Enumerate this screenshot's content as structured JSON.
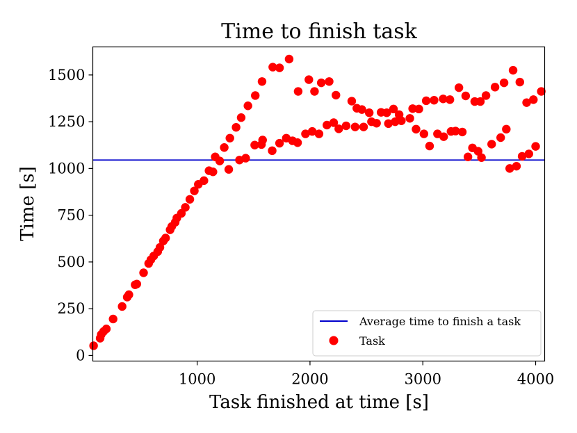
{
  "chart_data": {
    "type": "scatter",
    "title": "Time to finish task",
    "xlabel": "Task finished at time [s]",
    "ylabel": "Time [s]",
    "xlim": [
      75,
      4080
    ],
    "ylim": [
      -30,
      1650
    ],
    "xticks": [
      {
        "value": 1000,
        "label": "1000"
      },
      {
        "value": 2000,
        "label": "2000"
      },
      {
        "value": 3000,
        "label": "3000"
      },
      {
        "value": 4000,
        "label": "4000"
      }
    ],
    "yticks": [
      {
        "value": 0,
        "label": "0"
      },
      {
        "value": 250,
        "label": "250"
      },
      {
        "value": 500,
        "label": "500"
      },
      {
        "value": 750,
        "label": "750"
      },
      {
        "value": 1000,
        "label": "1000"
      },
      {
        "value": 1250,
        "label": "1250"
      },
      {
        "value": 1500,
        "label": "1500"
      }
    ],
    "grid": false,
    "legend_position": "lower right",
    "series": [
      {
        "name": "Average time to finish a task",
        "kind": "hline",
        "y": 1045,
        "color": "#0000cc"
      },
      {
        "name": "Task",
        "kind": "scatter",
        "color": "#ff0000",
        "points": [
          [
            82,
            52
          ],
          [
            140,
            92
          ],
          [
            150,
            112
          ],
          [
            170,
            128
          ],
          [
            195,
            142
          ],
          [
            255,
            195
          ],
          [
            335,
            262
          ],
          [
            380,
            312
          ],
          [
            395,
            325
          ],
          [
            450,
            378
          ],
          [
            465,
            382
          ],
          [
            525,
            442
          ],
          [
            570,
            492
          ],
          [
            590,
            512
          ],
          [
            615,
            532
          ],
          [
            650,
            555
          ],
          [
            670,
            578
          ],
          [
            700,
            612
          ],
          [
            720,
            628
          ],
          [
            760,
            672
          ],
          [
            775,
            690
          ],
          [
            805,
            712
          ],
          [
            820,
            735
          ],
          [
            860,
            760
          ],
          [
            895,
            792
          ],
          [
            935,
            835
          ],
          [
            975,
            880
          ],
          [
            1010,
            915
          ],
          [
            1060,
            935
          ],
          [
            1105,
            988
          ],
          [
            1140,
            982
          ],
          [
            1160,
            1062
          ],
          [
            1200,
            1040
          ],
          [
            1240,
            1112
          ],
          [
            1280,
            995
          ],
          [
            1290,
            1162
          ],
          [
            1345,
            1220
          ],
          [
            1375,
            1045
          ],
          [
            1390,
            1272
          ],
          [
            1430,
            1055
          ],
          [
            1450,
            1335
          ],
          [
            1510,
            1125
          ],
          [
            1515,
            1390
          ],
          [
            1580,
            1152
          ],
          [
            1570,
            1128
          ],
          [
            1575,
            1465
          ],
          [
            1665,
            1095
          ],
          [
            1670,
            1542
          ],
          [
            1730,
            1135
          ],
          [
            1730,
            1538
          ],
          [
            1790,
            1162
          ],
          [
            1815,
            1585
          ],
          [
            1845,
            1148
          ],
          [
            1890,
            1138
          ],
          [
            1895,
            1412
          ],
          [
            1960,
            1185
          ],
          [
            1990,
            1475
          ],
          [
            2020,
            1198
          ],
          [
            2040,
            1412
          ],
          [
            2080,
            1185
          ],
          [
            2100,
            1458
          ],
          [
            2150,
            1232
          ],
          [
            2170,
            1465
          ],
          [
            2210,
            1245
          ],
          [
            2230,
            1392
          ],
          [
            2255,
            1212
          ],
          [
            2320,
            1228
          ],
          [
            2370,
            1360
          ],
          [
            2400,
            1222
          ],
          [
            2415,
            1322
          ],
          [
            2460,
            1315
          ],
          [
            2475,
            1222
          ],
          [
            2525,
            1298
          ],
          [
            2545,
            1250
          ],
          [
            2590,
            1242
          ],
          [
            2630,
            1300
          ],
          [
            2680,
            1298
          ],
          [
            2695,
            1240
          ],
          [
            2740,
            1318
          ],
          [
            2755,
            1250
          ],
          [
            2790,
            1288
          ],
          [
            2810,
            1255
          ],
          [
            2885,
            1268
          ],
          [
            2910,
            1320
          ],
          [
            2940,
            1210
          ],
          [
            2965,
            1318
          ],
          [
            3010,
            1185
          ],
          [
            3030,
            1362
          ],
          [
            3060,
            1120
          ],
          [
            3100,
            1365
          ],
          [
            3130,
            1185
          ],
          [
            3180,
            1372
          ],
          [
            3185,
            1170
          ],
          [
            3240,
            1368
          ],
          [
            3250,
            1198
          ],
          [
            3290,
            1200
          ],
          [
            3320,
            1432
          ],
          [
            3350,
            1195
          ],
          [
            3380,
            1388
          ],
          [
            3400,
            1062
          ],
          [
            3440,
            1110
          ],
          [
            3460,
            1358
          ],
          [
            3490,
            1092
          ],
          [
            3510,
            1358
          ],
          [
            3520,
            1058
          ],
          [
            3560,
            1390
          ],
          [
            3610,
            1130
          ],
          [
            3640,
            1435
          ],
          [
            3690,
            1165
          ],
          [
            3720,
            1458
          ],
          [
            3740,
            1210
          ],
          [
            3770,
            1000
          ],
          [
            3800,
            1525
          ],
          [
            3830,
            1012
          ],
          [
            3860,
            1462
          ],
          [
            3880,
            1065
          ],
          [
            3920,
            1352
          ],
          [
            3940,
            1078
          ],
          [
            3980,
            1368
          ],
          [
            4000,
            1118
          ],
          [
            4050,
            1412
          ]
        ]
      }
    ]
  }
}
